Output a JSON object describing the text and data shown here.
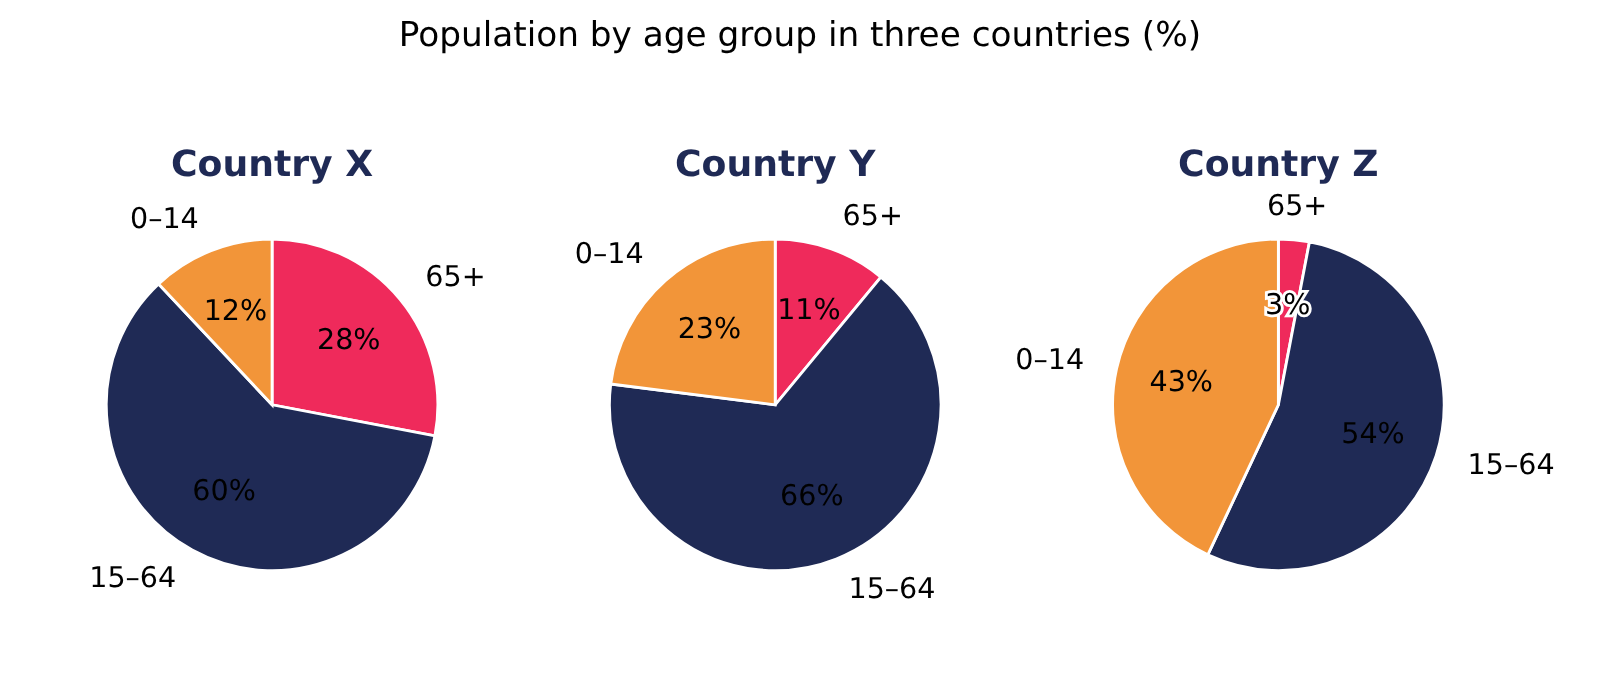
{
  "chart_data": [
    {
      "type": "pie",
      "title": "Country X",
      "annotations": [
        "Population by age group in three countries (%)"
      ],
      "categories": [
        "65+",
        "15–64",
        "0–14"
      ],
      "values": [
        28,
        60,
        12
      ],
      "value_labels": [
        "28%",
        "60%",
        "12%"
      ],
      "colors": [
        "#ef2a5b",
        "#1f2a55",
        "#f29539"
      ]
    },
    {
      "type": "pie",
      "title": "Country Y",
      "categories": [
        "65+",
        "15–64",
        "0–14"
      ],
      "values": [
        11,
        66,
        23
      ],
      "value_labels": [
        "11%",
        "66%",
        "23%"
      ],
      "colors": [
        "#ef2a5b",
        "#1f2a55",
        "#f29539"
      ]
    },
    {
      "type": "pie",
      "title": "Country Z",
      "categories": [
        "65+",
        "15–64",
        "0–14"
      ],
      "values": [
        3,
        54,
        43
      ],
      "value_labels": [
        "3%",
        "54%",
        "43%"
      ],
      "colors": [
        "#ef2a5b",
        "#1f2a55",
        "#f29539"
      ]
    }
  ]
}
